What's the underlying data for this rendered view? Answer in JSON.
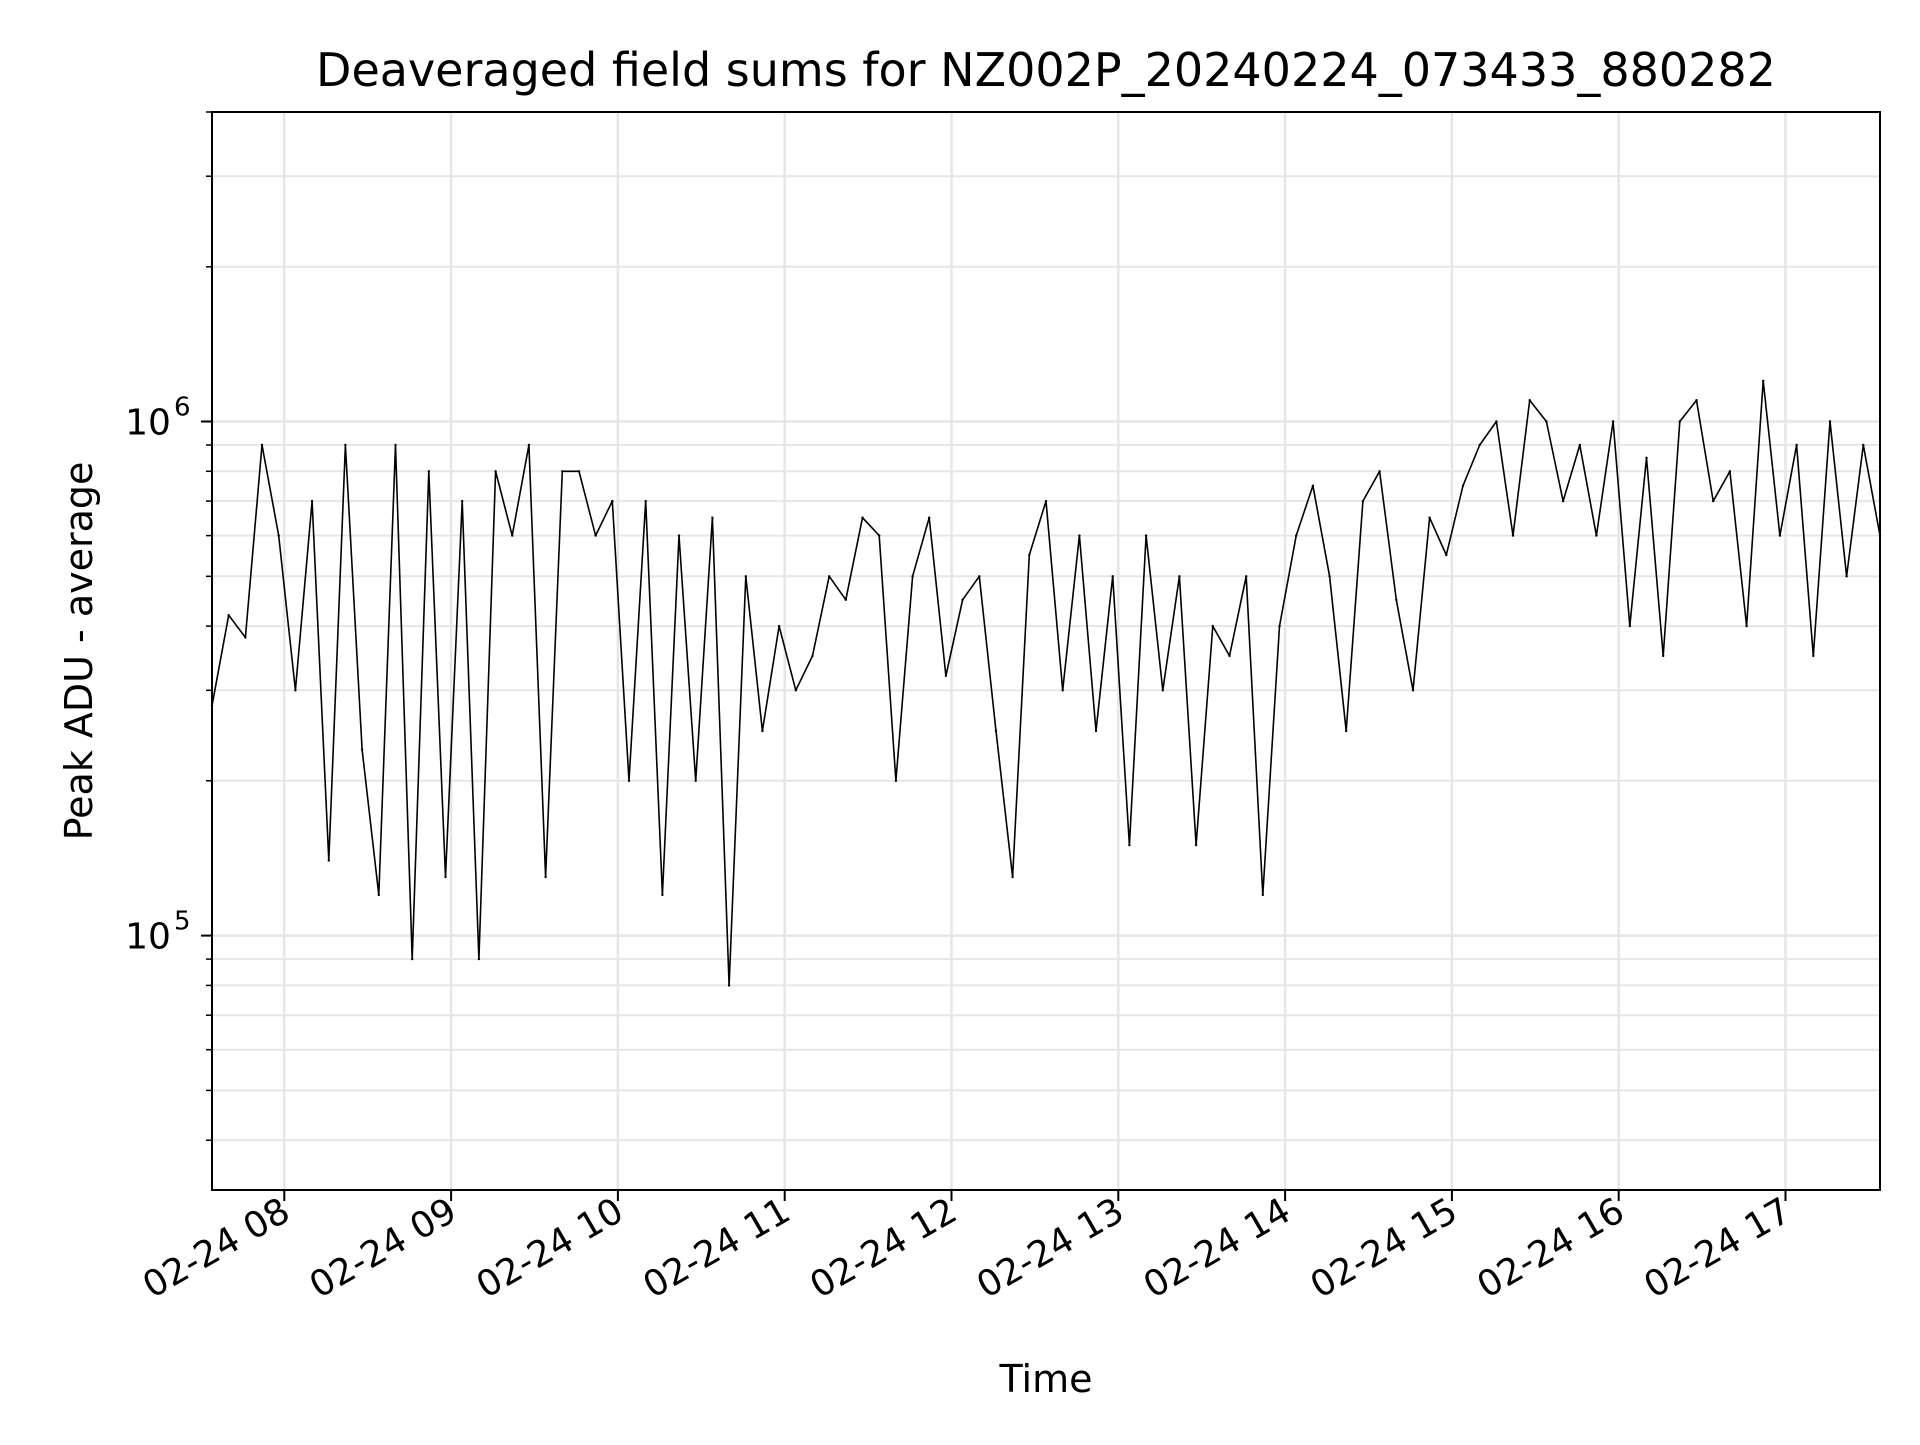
{
  "chart_data": {
    "type": "line",
    "title": "Deaveraged field sums for NZ002P_20240224_073433_880282",
    "xlabel": "Time",
    "ylabel": "Peak ADU - average",
    "yscale": "log",
    "grid": true,
    "legend": "none",
    "line_color": "#000000",
    "grid_color": "#e6e6e6",
    "xlim": [
      "2024-02-24 07:34",
      "2024-02-24 17:34"
    ],
    "ylim": [
      32000,
      4000000
    ],
    "x_ticks": [
      {
        "value": "2024-02-24 08:00",
        "label": "02-24 08"
      },
      {
        "value": "2024-02-24 09:00",
        "label": "02-24 09"
      },
      {
        "value": "2024-02-24 10:00",
        "label": "02-24 10"
      },
      {
        "value": "2024-02-24 11:00",
        "label": "02-24 11"
      },
      {
        "value": "2024-02-24 12:00",
        "label": "02-24 12"
      },
      {
        "value": "2024-02-24 13:00",
        "label": "02-24 13"
      },
      {
        "value": "2024-02-24 14:00",
        "label": "02-24 14"
      },
      {
        "value": "2024-02-24 15:00",
        "label": "02-24 15"
      },
      {
        "value": "2024-02-24 16:00",
        "label": "02-24 16"
      },
      {
        "value": "2024-02-24 17:00",
        "label": "02-24 17"
      }
    ],
    "y_ticks": [
      {
        "value": 100000,
        "base": "10",
        "exp": "5"
      },
      {
        "value": 1000000,
        "base": "10",
        "exp": "6"
      }
    ],
    "series": [
      {
        "x": [
          "2024-02-24 07:34",
          "2024-02-24 07:40",
          "2024-02-24 07:46",
          "2024-02-24 07:52",
          "2024-02-24 07:58",
          "2024-02-24 08:04",
          "2024-02-24 08:10",
          "2024-02-24 08:16",
          "2024-02-24 08:22",
          "2024-02-24 08:28",
          "2024-02-24 08:34",
          "2024-02-24 08:40",
          "2024-02-24 08:46",
          "2024-02-24 08:52",
          "2024-02-24 08:58",
          "2024-02-24 09:04",
          "2024-02-24 09:10",
          "2024-02-24 09:16",
          "2024-02-24 09:22",
          "2024-02-24 09:28",
          "2024-02-24 09:34",
          "2024-02-24 09:40",
          "2024-02-24 09:46",
          "2024-02-24 09:52",
          "2024-02-24 09:58",
          "2024-02-24 10:04",
          "2024-02-24 10:10",
          "2024-02-24 10:16",
          "2024-02-24 10:22",
          "2024-02-24 10:28",
          "2024-02-24 10:34",
          "2024-02-24 10:40",
          "2024-02-24 10:46",
          "2024-02-24 10:52",
          "2024-02-24 10:58",
          "2024-02-24 11:04",
          "2024-02-24 11:10",
          "2024-02-24 11:16",
          "2024-02-24 11:22",
          "2024-02-24 11:28",
          "2024-02-24 11:34",
          "2024-02-24 11:40",
          "2024-02-24 11:46",
          "2024-02-24 11:52",
          "2024-02-24 11:58",
          "2024-02-24 12:04",
          "2024-02-24 12:10",
          "2024-02-24 12:16",
          "2024-02-24 12:22",
          "2024-02-24 12:28",
          "2024-02-24 12:34",
          "2024-02-24 12:40",
          "2024-02-24 12:46",
          "2024-02-24 12:52",
          "2024-02-24 12:58",
          "2024-02-24 13:04",
          "2024-02-24 13:10",
          "2024-02-24 13:16",
          "2024-02-24 13:22",
          "2024-02-24 13:28",
          "2024-02-24 13:34",
          "2024-02-24 13:40",
          "2024-02-24 13:46",
          "2024-02-24 13:52",
          "2024-02-24 13:58",
          "2024-02-24 14:04",
          "2024-02-24 14:10",
          "2024-02-24 14:16",
          "2024-02-24 14:22",
          "2024-02-24 14:28",
          "2024-02-24 14:34",
          "2024-02-24 14:40",
          "2024-02-24 14:46",
          "2024-02-24 14:52",
          "2024-02-24 14:58",
          "2024-02-24 15:04",
          "2024-02-24 15:10",
          "2024-02-24 15:16",
          "2024-02-24 15:22",
          "2024-02-24 15:28",
          "2024-02-24 15:34",
          "2024-02-24 15:40",
          "2024-02-24 15:46",
          "2024-02-24 15:52",
          "2024-02-24 15:58",
          "2024-02-24 16:04",
          "2024-02-24 16:10",
          "2024-02-24 16:16",
          "2024-02-24 16:22",
          "2024-02-24 16:28",
          "2024-02-24 16:34",
          "2024-02-24 16:40",
          "2024-02-24 16:46",
          "2024-02-24 16:52",
          "2024-02-24 16:58",
          "2024-02-24 17:04",
          "2024-02-24 17:10",
          "2024-02-24 17:16",
          "2024-02-24 17:22",
          "2024-02-24 17:28",
          "2024-02-24 17:34"
        ],
        "y": [
          280000,
          420000,
          380000,
          900000,
          600000,
          300000,
          700000,
          140000,
          900000,
          230000,
          120000,
          900000,
          90000,
          800000,
          130000,
          700000,
          90000,
          800000,
          600000,
          900000,
          130000,
          800000,
          800000,
          600000,
          700000,
          200000,
          700000,
          120000,
          600000,
          200000,
          650000,
          80000,
          500000,
          250000,
          400000,
          300000,
          350000,
          500000,
          450000,
          650000,
          600000,
          200000,
          500000,
          650000,
          320000,
          450000,
          500000,
          250000,
          130000,
          550000,
          700000,
          300000,
          600000,
          250000,
          500000,
          150000,
          600000,
          300000,
          500000,
          150000,
          400000,
          350000,
          500000,
          120000,
          400000,
          600000,
          750000,
          500000,
          250000,
          700000,
          800000,
          450000,
          300000,
          650000,
          550000,
          750000,
          900000,
          1000000,
          600000,
          1100000,
          1000000,
          700000,
          900000,
          600000,
          1000000,
          400000,
          850000,
          350000,
          1000000,
          1100000,
          700000,
          800000,
          400000,
          1200000,
          600000,
          900000,
          350000,
          1000000,
          500000,
          900000,
          600000
        ]
      }
    ]
  }
}
